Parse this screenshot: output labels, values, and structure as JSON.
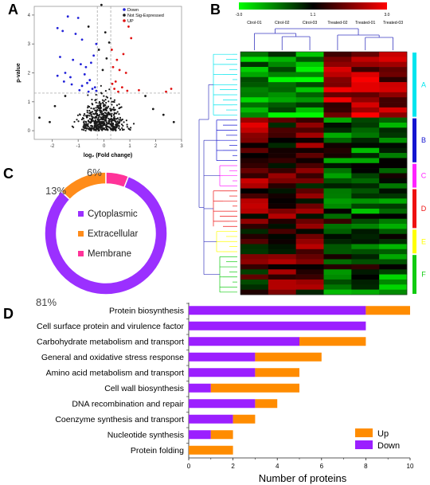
{
  "panels": {
    "a": "A",
    "b": "B",
    "c": "C",
    "d": "D"
  },
  "chart_data": [
    {
      "panel": "A",
      "type": "scatter",
      "title": "",
      "xlabel": "log₂ (Fold change)",
      "ylabel": "p-value",
      "xlim": [
        -2.7,
        3.0
      ],
      "ylim": [
        -0.3,
        4.3
      ],
      "x_ticks": [
        "-2",
        "-1",
        "0",
        "1",
        "2",
        "3"
      ],
      "y_ticks": [
        "0",
        "1",
        "2",
        "3",
        "4"
      ],
      "threshold_x": [
        -0.26,
        0.26
      ],
      "threshold_y": 1.3,
      "legend": [
        "Down",
        "Not Sig-Expressed",
        "UP"
      ],
      "legend_position": "top-right",
      "colors": {
        "Down": "#2020d8",
        "Not Sig-Expressed": "#1a1a1a",
        "UP": "#e01010"
      },
      "series": [
        {
          "name": "Down",
          "points": [
            [
              -1.4,
              3.95
            ],
            [
              -1.0,
              3.9
            ],
            [
              -1.8,
              3.55
            ],
            [
              -1.6,
              3.45
            ],
            [
              -1.1,
              3.35
            ],
            [
              -0.85,
              3.15
            ],
            [
              -1.7,
              2.55
            ],
            [
              -1.2,
              2.45
            ],
            [
              -0.9,
              2.3
            ],
            [
              -0.7,
              2.2
            ],
            [
              -1.5,
              2.0
            ],
            [
              -1.8,
              1.9
            ],
            [
              -1.3,
              1.85
            ],
            [
              -0.75,
              1.95
            ],
            [
              -0.5,
              2.35
            ],
            [
              -0.55,
              1.75
            ],
            [
              -0.65,
              1.65
            ],
            [
              -0.85,
              1.55
            ],
            [
              -0.45,
              1.45
            ],
            [
              -0.95,
              1.4
            ],
            [
              -0.35,
              1.5
            ],
            [
              -0.6,
              1.35
            ],
            [
              -0.4,
              2.6
            ],
            [
              -0.3,
              3.0
            ],
            [
              -0.3,
              1.38
            ],
            [
              -1.25,
              1.6
            ],
            [
              -1.55,
              1.7
            ]
          ]
        },
        {
          "name": "UP",
          "points": [
            [
              0.95,
              3.6
            ],
            [
              1.05,
              3.2
            ],
            [
              0.75,
              2.65
            ],
            [
              0.5,
              2.45
            ],
            [
              0.35,
              2.2
            ],
            [
              0.6,
              2.1
            ],
            [
              0.85,
              2.0
            ],
            [
              0.45,
              1.7
            ],
            [
              0.7,
              1.5
            ],
            [
              0.4,
              1.45
            ],
            [
              0.32,
              1.62
            ],
            [
              2.4,
              1.35
            ],
            [
              2.6,
              1.45
            ],
            [
              1.35,
              1.4
            ],
            [
              0.9,
              1.38
            ],
            [
              0.3,
              2.8
            ],
            [
              0.55,
              1.35
            ]
          ]
        },
        {
          "name": "Not Sig-Expressed",
          "points": [
            [
              -0.1,
              4.35
            ],
            [
              0.05,
              3.4
            ],
            [
              -0.2,
              2.8
            ],
            [
              0.2,
              3.05
            ],
            [
              -0.6,
              3.6
            ],
            [
              -2.5,
              0.45
            ],
            [
              -2.1,
              0.3
            ],
            [
              2.3,
              0.55
            ],
            [
              2.7,
              0.3
            ],
            [
              1.9,
              0.75
            ],
            [
              -1.9,
              0.85
            ],
            [
              1.6,
              1.2
            ],
            [
              -1.5,
              1.2
            ],
            [
              0.1,
              2.5
            ],
            [
              -0.05,
              2.1
            ]
          ]
        }
      ]
    },
    {
      "panel": "B",
      "type": "heatmap",
      "colorbar_ticks": [
        "-3.0",
        "1.1",
        "3.0"
      ],
      "columns": [
        "Ctrol-01",
        "Ctrol-02",
        "Ctrol-03",
        "Treated-02",
        "Treated-01",
        "Treated-03"
      ],
      "clusters": [
        {
          "label": "A",
          "color": "#00e5ee",
          "rows": 13
        },
        {
          "label": "B",
          "color": "#1515d0",
          "rows": 9
        },
        {
          "label": "C",
          "color": "#ff22ff",
          "rows": 5
        },
        {
          "label": "D",
          "color": "#ee1111",
          "rows": 8
        },
        {
          "label": "E",
          "color": "#ffff00",
          "rows": 5
        },
        {
          "label": "F",
          "color": "#11cc11",
          "rows": 8
        }
      ]
    },
    {
      "panel": "C",
      "type": "pie",
      "donut": true,
      "slices": [
        {
          "name": "Cytoplasmic",
          "value": 81,
          "label": "81%",
          "color": "#9b30ff"
        },
        {
          "name": "Extracellular",
          "value": 13,
          "label": "13%",
          "color": "#ff8c1a"
        },
        {
          "name": "Membrane",
          "value": 6,
          "label": "6%",
          "color": "#ff3399"
        }
      ]
    },
    {
      "panel": "D",
      "type": "bar",
      "orientation": "horizontal",
      "stacked": true,
      "xlabel": "Number of proteins",
      "ylabel": "",
      "xlim": [
        0,
        10
      ],
      "x_ticks": [
        "0",
        "2",
        "4",
        "6",
        "8",
        "10"
      ],
      "legend_position": "bottom-right",
      "categories": [
        "Protein biosynthesis",
        "Cell surface protein and virulence factor",
        "Carbohydrate metabolism and transport",
        "General and oxidative stress response",
        "Amino acid metabolism and transport",
        "Cell wall biosynthesis",
        "DNA recombination and repair",
        "Coenzyme synthesis and transport",
        "Nucleotide synthesis",
        "Protein folding"
      ],
      "series": [
        {
          "name": "Down",
          "color": "#9b1fff",
          "values": [
            8,
            8,
            5,
            3,
            3,
            1,
            3,
            2,
            1,
            0
          ]
        },
        {
          "name": "Up",
          "color": "#ff8c00",
          "values": [
            2,
            0,
            3,
            3,
            2,
            4,
            1,
            1,
            1,
            2
          ]
        }
      ],
      "legend": [
        "Up",
        "Down"
      ]
    }
  ]
}
